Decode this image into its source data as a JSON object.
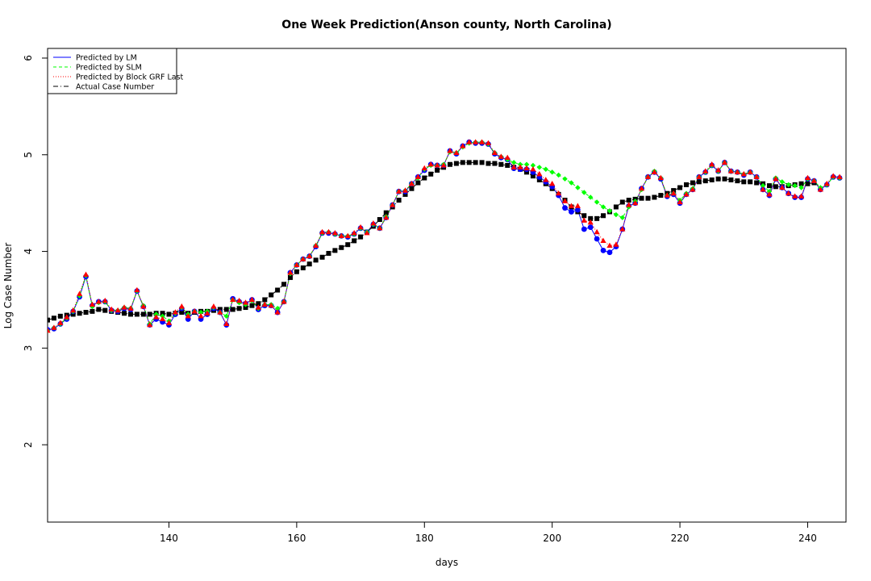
{
  "chart_data": {
    "type": "line",
    "title": "One Week Prediction(Anson county, North Carolina)",
    "xlabel": "days",
    "ylabel": "Log Case Number",
    "xlim": [
      121,
      246
    ],
    "ylim": [
      1.2,
      6.1
    ],
    "x_ticks": [
      140,
      160,
      180,
      200,
      220,
      240
    ],
    "y_ticks": [
      2,
      3,
      4,
      5,
      6
    ],
    "grid": false,
    "legend_position": "top-left",
    "legend": [
      {
        "label": "Predicted by LM",
        "color": "#0000ff",
        "line": "solid",
        "marker": "circle"
      },
      {
        "label": "Predicted by SLM",
        "color": "#00ff00",
        "line": "dashed",
        "marker": "diamond"
      },
      {
        "label": "Predicted by Block GRF Last",
        "color": "#ff0000",
        "line": "dotted",
        "marker": "triangle"
      },
      {
        "label": "Actual Case Number",
        "color": "#000000",
        "line": "dotdash",
        "marker": "square"
      }
    ],
    "x_start": 121,
    "actual": [
      3.29,
      3.31,
      3.33,
      3.34,
      3.35,
      3.36,
      3.37,
      3.38,
      3.4,
      3.39,
      3.38,
      3.37,
      3.36,
      3.35,
      3.35,
      3.35,
      3.35,
      3.36,
      3.36,
      3.35,
      3.36,
      3.37,
      3.36,
      3.37,
      3.38,
      3.38,
      3.39,
      3.4,
      3.4,
      3.4,
      3.41,
      3.42,
      3.44,
      3.46,
      3.5,
      3.55,
      3.6,
      3.66,
      3.73,
      3.79,
      3.83,
      3.87,
      3.91,
      3.94,
      3.98,
      4.01,
      4.04,
      4.07,
      4.11,
      4.15,
      4.2,
      4.26,
      4.33,
      4.4,
      4.46,
      4.53,
      4.59,
      4.65,
      4.71,
      4.76,
      4.8,
      4.84,
      4.87,
      4.9,
      4.91,
      4.92,
      4.92,
      4.92,
      4.92,
      4.91,
      4.91,
      4.9,
      4.89,
      4.87,
      4.85,
      4.82,
      4.78,
      4.74,
      4.7,
      4.65,
      4.59,
      4.53,
      4.46,
      4.41,
      4.37,
      4.34,
      4.34,
      4.37,
      4.41,
      4.46,
      4.51,
      4.53,
      4.54,
      4.55,
      4.55,
      4.56,
      4.58,
      4.6,
      4.63,
      4.66,
      4.69,
      4.71,
      4.72,
      4.73,
      4.74,
      4.75,
      4.75,
      4.74,
      4.73,
      4.72,
      4.72,
      4.71,
      4.7,
      4.68,
      4.67,
      4.67,
      4.68,
      4.69,
      4.7,
      4.7,
      4.71
    ],
    "lm": [
      3.19,
      3.2,
      3.25,
      3.3,
      3.38,
      3.53,
      3.74,
      3.44,
      3.48,
      3.48,
      3.39,
      3.38,
      3.41,
      3.4,
      3.59,
      3.43,
      3.24,
      3.3,
      3.27,
      3.24,
      3.35,
      3.41,
      3.3,
      3.38,
      3.3,
      3.35,
      3.41,
      3.37,
      3.24,
      3.51,
      3.48,
      3.46,
      3.5,
      3.4,
      3.44,
      3.44,
      3.37,
      3.48,
      3.78,
      3.86,
      3.92,
      3.95,
      4.05,
      4.19,
      4.19,
      4.18,
      4.16,
      4.15,
      4.18,
      4.24,
      4.2,
      4.28,
      4.24,
      4.35,
      4.48,
      4.62,
      4.62,
      4.7,
      4.77,
      4.84,
      4.9,
      4.89,
      4.89,
      5.04,
      5.01,
      5.09,
      5.13,
      5.12,
      5.12,
      5.11,
      5.01,
      4.97,
      4.95,
      4.86,
      4.85,
      4.85,
      4.82,
      4.77,
      4.72,
      4.67,
      4.58,
      4.45,
      4.41,
      4.43,
      4.23,
      4.25,
      4.13,
      4.01,
      3.99,
      4.05,
      4.23,
      4.47,
      4.5,
      4.65,
      4.77,
      4.82,
      4.75,
      4.57,
      4.59,
      4.5,
      4.59,
      4.64,
      4.77,
      4.82,
      4.89,
      4.83,
      4.92,
      4.83,
      4.82,
      4.79,
      4.82,
      4.77,
      4.64,
      4.58,
      4.75,
      4.66,
      4.6,
      4.56,
      4.56,
      4.75,
      4.73,
      4.64,
      4.69,
      4.77,
      4.76
    ],
    "slm": [
      3.18,
      3.21,
      3.25,
      3.31,
      3.38,
      3.54,
      3.75,
      3.43,
      3.47,
      3.48,
      3.39,
      3.39,
      3.42,
      3.41,
      3.59,
      3.44,
      3.25,
      3.35,
      3.33,
      3.28,
      3.36,
      3.42,
      3.35,
      3.38,
      3.37,
      3.38,
      3.42,
      3.37,
      3.33,
      3.5,
      3.47,
      3.45,
      3.49,
      3.41,
      3.45,
      3.45,
      3.41,
      3.48,
      3.77,
      3.86,
      3.92,
      3.95,
      4.06,
      4.19,
      4.2,
      4.18,
      4.16,
      4.16,
      4.18,
      4.24,
      4.2,
      4.28,
      4.24,
      4.36,
      4.48,
      4.62,
      4.63,
      4.7,
      4.76,
      4.85,
      4.89,
      4.89,
      4.9,
      5.03,
      5.02,
      5.08,
      5.12,
      5.13,
      5.13,
      5.11,
      5.02,
      4.98,
      4.95,
      4.92,
      4.9,
      4.9,
      4.89,
      4.87,
      4.85,
      4.82,
      4.79,
      4.75,
      4.71,
      4.66,
      4.61,
      4.56,
      4.51,
      4.46,
      4.42,
      4.38,
      4.35,
      4.46,
      4.52,
      4.64,
      4.77,
      4.83,
      4.76,
      4.58,
      4.6,
      4.53,
      4.6,
      4.65,
      4.77,
      4.82,
      4.89,
      4.83,
      4.92,
      4.83,
      4.82,
      4.8,
      4.82,
      4.77,
      4.68,
      4.62,
      4.76,
      4.72,
      4.69,
      4.68,
      4.66,
      4.75,
      4.73,
      4.66,
      4.69,
      4.77,
      4.76
    ],
    "grf": [
      3.18,
      3.21,
      3.26,
      3.32,
      3.39,
      3.56,
      3.76,
      3.45,
      3.48,
      3.49,
      3.4,
      3.39,
      3.42,
      3.41,
      3.6,
      3.43,
      3.24,
      3.32,
      3.3,
      3.26,
      3.37,
      3.43,
      3.33,
      3.38,
      3.33,
      3.36,
      3.43,
      3.37,
      3.25,
      3.5,
      3.49,
      3.47,
      3.5,
      3.42,
      3.45,
      3.44,
      3.37,
      3.48,
      3.78,
      3.86,
      3.92,
      3.95,
      4.06,
      4.2,
      4.2,
      4.19,
      4.16,
      4.16,
      4.19,
      4.25,
      4.19,
      4.29,
      4.24,
      4.35,
      4.48,
      4.62,
      4.63,
      4.7,
      4.77,
      4.86,
      4.9,
      4.89,
      4.89,
      5.04,
      5.02,
      5.09,
      5.13,
      5.13,
      5.13,
      5.12,
      5.02,
      4.98,
      4.97,
      4.87,
      4.87,
      4.86,
      4.85,
      4.8,
      4.74,
      4.7,
      4.6,
      4.52,
      4.47,
      4.47,
      4.32,
      4.3,
      4.2,
      4.11,
      4.06,
      4.07,
      4.23,
      4.48,
      4.5,
      4.65,
      4.77,
      4.82,
      4.76,
      4.58,
      4.6,
      4.51,
      4.59,
      4.64,
      4.77,
      4.83,
      4.9,
      4.84,
      4.92,
      4.83,
      4.82,
      4.8,
      4.82,
      4.77,
      4.64,
      4.59,
      4.75,
      4.66,
      4.6,
      4.57,
      4.57,
      4.76,
      4.73,
      4.64,
      4.7,
      4.78,
      4.77
    ]
  }
}
